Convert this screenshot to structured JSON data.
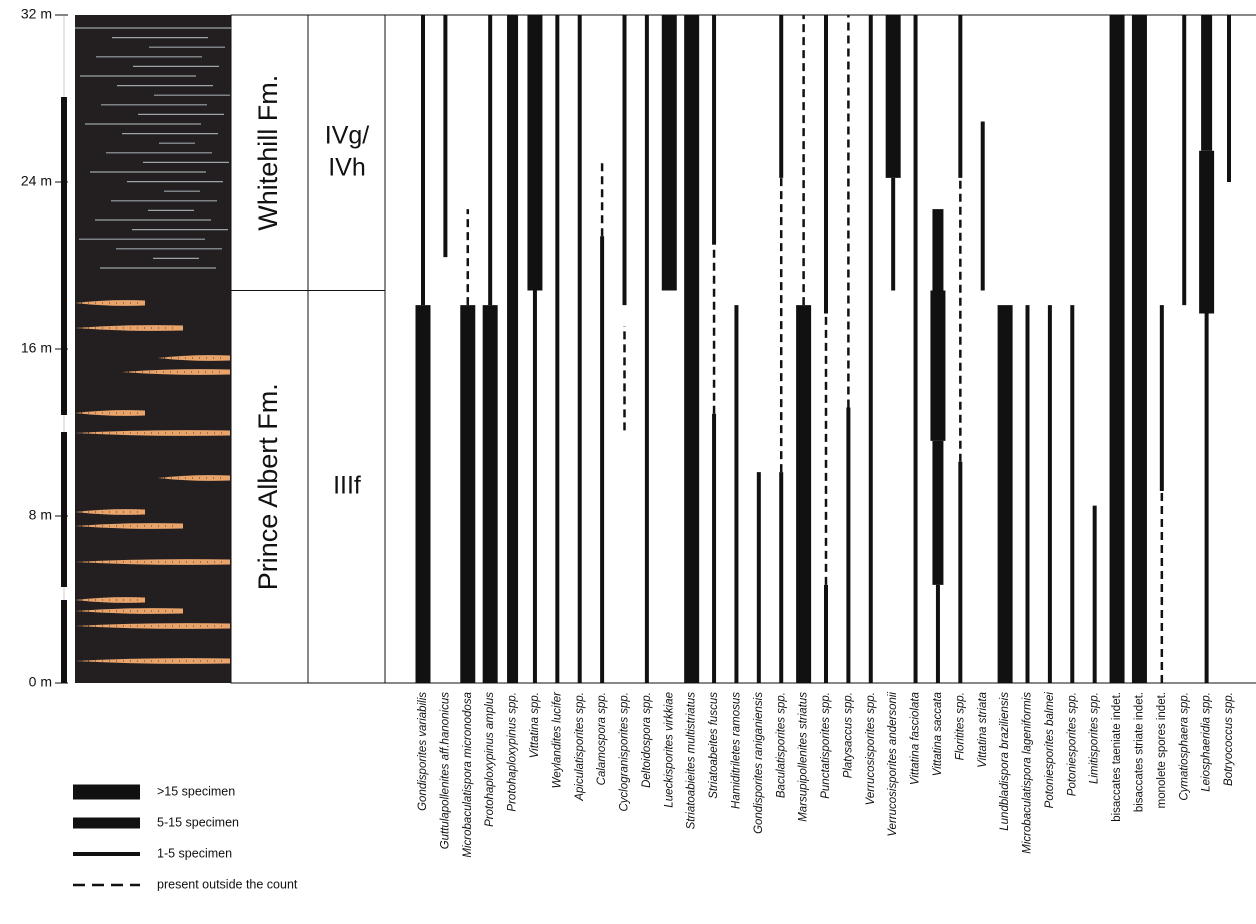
{
  "chart_data": {
    "type": "range",
    "ylim": [
      0,
      32
    ],
    "yticks": [
      {
        "value": 0,
        "label": "0 m"
      },
      {
        "value": 8,
        "label": "8 m"
      },
      {
        "value": 16,
        "label": "16 m"
      },
      {
        "value": 24,
        "label": "24 m"
      },
      {
        "value": 32,
        "label": "32 m"
      }
    ],
    "units": [
      {
        "name": "Whitehill Fm.",
        "from": 18.8,
        "to": 32
      },
      {
        "name": "Prince Albert Fm.",
        "from": 0,
        "to": 18.8
      }
    ],
    "zones": [
      {
        "lines": [
          "IVg/",
          "IVh"
        ],
        "from": 18.8,
        "to": 32
      },
      {
        "lines": [
          "IIIf"
        ],
        "from": 0,
        "to": 18.8
      }
    ],
    "legend": [
      {
        "label": ">15 specimen",
        "style": "thick"
      },
      {
        "label": "5-15 specimen",
        "style": "medium"
      },
      {
        "label": "1-5 specimen",
        "style": "thin"
      },
      {
        "label": "present outside the count",
        "style": "dashed"
      }
    ],
    "taxa": [
      {
        "name": "Gondisporites variabilis",
        "italic": true,
        "segments": [
          {
            "from": 18.1,
            "to": 32,
            "style": "thin"
          },
          {
            "from": 0,
            "to": 18.1,
            "style": "thick"
          }
        ]
      },
      {
        "name": "Guttulapollenites aff.hanonicus",
        "italic": true,
        "segments": [
          {
            "from": 20.4,
            "to": 32,
            "style": "thin"
          }
        ]
      },
      {
        "name": "Microbaculatispora micronodosa",
        "italic": true,
        "segments": [
          {
            "from": 18.1,
            "to": 22.7,
            "style": "dashed"
          },
          {
            "from": 0,
            "to": 18.1,
            "style": "thick"
          }
        ]
      },
      {
        "name": "Protohaploxypinus amplus",
        "italic": true,
        "segments": [
          {
            "from": 18.1,
            "to": 32,
            "style": "thin"
          },
          {
            "from": 0,
            "to": 18.1,
            "style": "thick"
          }
        ]
      },
      {
        "name": "Protohaploxypinus spp.",
        "italic": true,
        "segments": [
          {
            "from": 0,
            "to": 32,
            "style": "medium"
          }
        ]
      },
      {
        "name": "Vittatina spp.",
        "italic": true,
        "segments": [
          {
            "from": 18.8,
            "to": 32,
            "style": "thick"
          },
          {
            "from": 0,
            "to": 18.8,
            "style": "thin"
          }
        ]
      },
      {
        "name": "Weylandites lucifer",
        "italic": true,
        "segments": [
          {
            "from": 0,
            "to": 32,
            "style": "thin"
          }
        ]
      },
      {
        "name": "Apiculatisporites spp.",
        "italic": true,
        "segments": [
          {
            "from": 0,
            "to": 32,
            "style": "thin"
          }
        ]
      },
      {
        "name": "Calamospora spp.",
        "italic": true,
        "segments": [
          {
            "from": 21.4,
            "to": 25.1,
            "style": "dashed"
          },
          {
            "from": 0,
            "to": 21.4,
            "style": "thin"
          }
        ]
      },
      {
        "name": "Cyclogranisporites spp.",
        "italic": true,
        "segments": [
          {
            "from": 18.1,
            "to": 32,
            "style": "thin"
          },
          {
            "from": 12.1,
            "to": 17.1,
            "style": "dashed"
          }
        ]
      },
      {
        "name": "Deltoidospora spp.",
        "italic": true,
        "segments": [
          {
            "from": 0,
            "to": 32,
            "style": "thin"
          }
        ]
      },
      {
        "name": "Lueckisporites virkkiae",
        "italic": true,
        "segments": [
          {
            "from": 18.8,
            "to": 32,
            "style": "thick"
          }
        ]
      },
      {
        "name": "Striatoabieites multistriatus",
        "italic": true,
        "segments": [
          {
            "from": 0,
            "to": 32,
            "style": "thick"
          }
        ]
      },
      {
        "name": "Striatoabeites fuscus",
        "italic": true,
        "segments": [
          {
            "from": 21.0,
            "to": 32,
            "style": "thin"
          },
          {
            "from": 12.9,
            "to": 21.0,
            "style": "dashed"
          },
          {
            "from": 0,
            "to": 12.9,
            "style": "thin"
          }
        ]
      },
      {
        "name": "Hamiditriletes ramosus",
        "italic": true,
        "segments": [
          {
            "from": 0,
            "to": 18.1,
            "style": "thin"
          }
        ]
      },
      {
        "name": "Gondisporites raniganiensis",
        "italic": true,
        "segments": [
          {
            "from": 0,
            "to": 10.1,
            "style": "thin"
          }
        ]
      },
      {
        "name": "Baculatisporites spp.",
        "italic": true,
        "segments": [
          {
            "from": 24.2,
            "to": 32,
            "style": "thin"
          },
          {
            "from": 10.1,
            "to": 24.2,
            "style": "dashed"
          },
          {
            "from": 0,
            "to": 10.1,
            "style": "thin"
          }
        ]
      },
      {
        "name": "Marsupipollenites striatus",
        "italic": true,
        "segments": [
          {
            "from": 18.1,
            "to": 32,
            "style": "dashed"
          },
          {
            "from": 0,
            "to": 18.1,
            "style": "thick"
          }
        ]
      },
      {
        "name": "Punctatisporites spp.",
        "italic": true,
        "segments": [
          {
            "from": 17.7,
            "to": 32,
            "style": "thin"
          },
          {
            "from": 4.7,
            "to": 17.7,
            "style": "dashed"
          },
          {
            "from": 0,
            "to": 4.7,
            "style": "thin"
          }
        ]
      },
      {
        "name": "Platysaccus spp.",
        "italic": true,
        "segments": [
          {
            "from": 13.2,
            "to": 32,
            "style": "dashed"
          },
          {
            "from": 0,
            "to": 13.2,
            "style": "thin"
          }
        ]
      },
      {
        "name": "Verrucosisporites spp.",
        "italic": true,
        "segments": [
          {
            "from": 0,
            "to": 32,
            "style": "thin"
          }
        ]
      },
      {
        "name": "Verrucosisporites andersonii",
        "italic": true,
        "segments": [
          {
            "from": 24.2,
            "to": 32,
            "style": "thick"
          },
          {
            "from": 18.8,
            "to": 24.2,
            "style": "thin"
          }
        ]
      },
      {
        "name": "Vittatina fasciolata",
        "italic": true,
        "segments": [
          {
            "from": 0,
            "to": 32,
            "style": "thin"
          }
        ]
      },
      {
        "name": "Vittatina saccata",
        "italic": true,
        "segments": [
          {
            "from": 18.8,
            "to": 22.7,
            "style": "medium"
          },
          {
            "from": 11.6,
            "to": 18.8,
            "style": "thick"
          },
          {
            "from": 4.7,
            "to": 11.6,
            "style": "medium"
          },
          {
            "from": 0,
            "to": 4.7,
            "style": "thin"
          }
        ]
      },
      {
        "name": "Floritites spp.",
        "italic": true,
        "segments": [
          {
            "from": 24.2,
            "to": 32,
            "style": "thin"
          },
          {
            "from": 10.6,
            "to": 24.2,
            "style": "dashed"
          },
          {
            "from": 0,
            "to": 10.6,
            "style": "thin"
          }
        ]
      },
      {
        "name": "Vittatina striata",
        "italic": true,
        "segments": [
          {
            "from": 18.8,
            "to": 26.9,
            "style": "thin"
          }
        ]
      },
      {
        "name": "Lundbladispora braziliensis",
        "italic": true,
        "segments": [
          {
            "from": 0,
            "to": 18.1,
            "style": "thick"
          }
        ]
      },
      {
        "name": "Microbaculatispora lageniformis",
        "italic": true,
        "segments": [
          {
            "from": 0,
            "to": 18.1,
            "style": "thin"
          }
        ]
      },
      {
        "name": "Potoniesporites balmei",
        "italic": true,
        "segments": [
          {
            "from": 0,
            "to": 18.1,
            "style": "thin"
          }
        ]
      },
      {
        "name": "Potoniesporites spp.",
        "italic": true,
        "segments": [
          {
            "from": 0,
            "to": 18.1,
            "style": "thin"
          }
        ]
      },
      {
        "name": "Limitisporites spp.",
        "italic": true,
        "segments": [
          {
            "from": 0,
            "to": 8.5,
            "style": "thin"
          }
        ]
      },
      {
        "name": "bisaccates taeniate indet.",
        "italic": false,
        "segments": [
          {
            "from": 0,
            "to": 32,
            "style": "thick"
          }
        ]
      },
      {
        "name": "bisaccates striate indet.",
        "italic": false,
        "segments": [
          {
            "from": 0,
            "to": 32,
            "style": "thick"
          }
        ]
      },
      {
        "name": "monolete spores indet.",
        "italic": false,
        "segments": [
          {
            "from": 9.2,
            "to": 18.1,
            "style": "thin"
          },
          {
            "from": 0,
            "to": 9.2,
            "style": "dashed"
          }
        ]
      },
      {
        "name": "Cymatiosphaera spp.",
        "italic": true,
        "segments": [
          {
            "from": 18.1,
            "to": 32,
            "style": "thin"
          }
        ]
      },
      {
        "name": "Leiosphaeridia spp.",
        "italic": true,
        "segments": [
          {
            "from": 25.5,
            "to": 32,
            "style": "medium"
          },
          {
            "from": 17.7,
            "to": 25.5,
            "style": "thick"
          },
          {
            "from": 0,
            "to": 17.7,
            "style": "thin"
          }
        ]
      },
      {
        "name": "Botryococcus spp.",
        "italic": true,
        "segments": [
          {
            "from": 24.0,
            "to": 32,
            "style": "thin"
          }
        ]
      }
    ]
  }
}
